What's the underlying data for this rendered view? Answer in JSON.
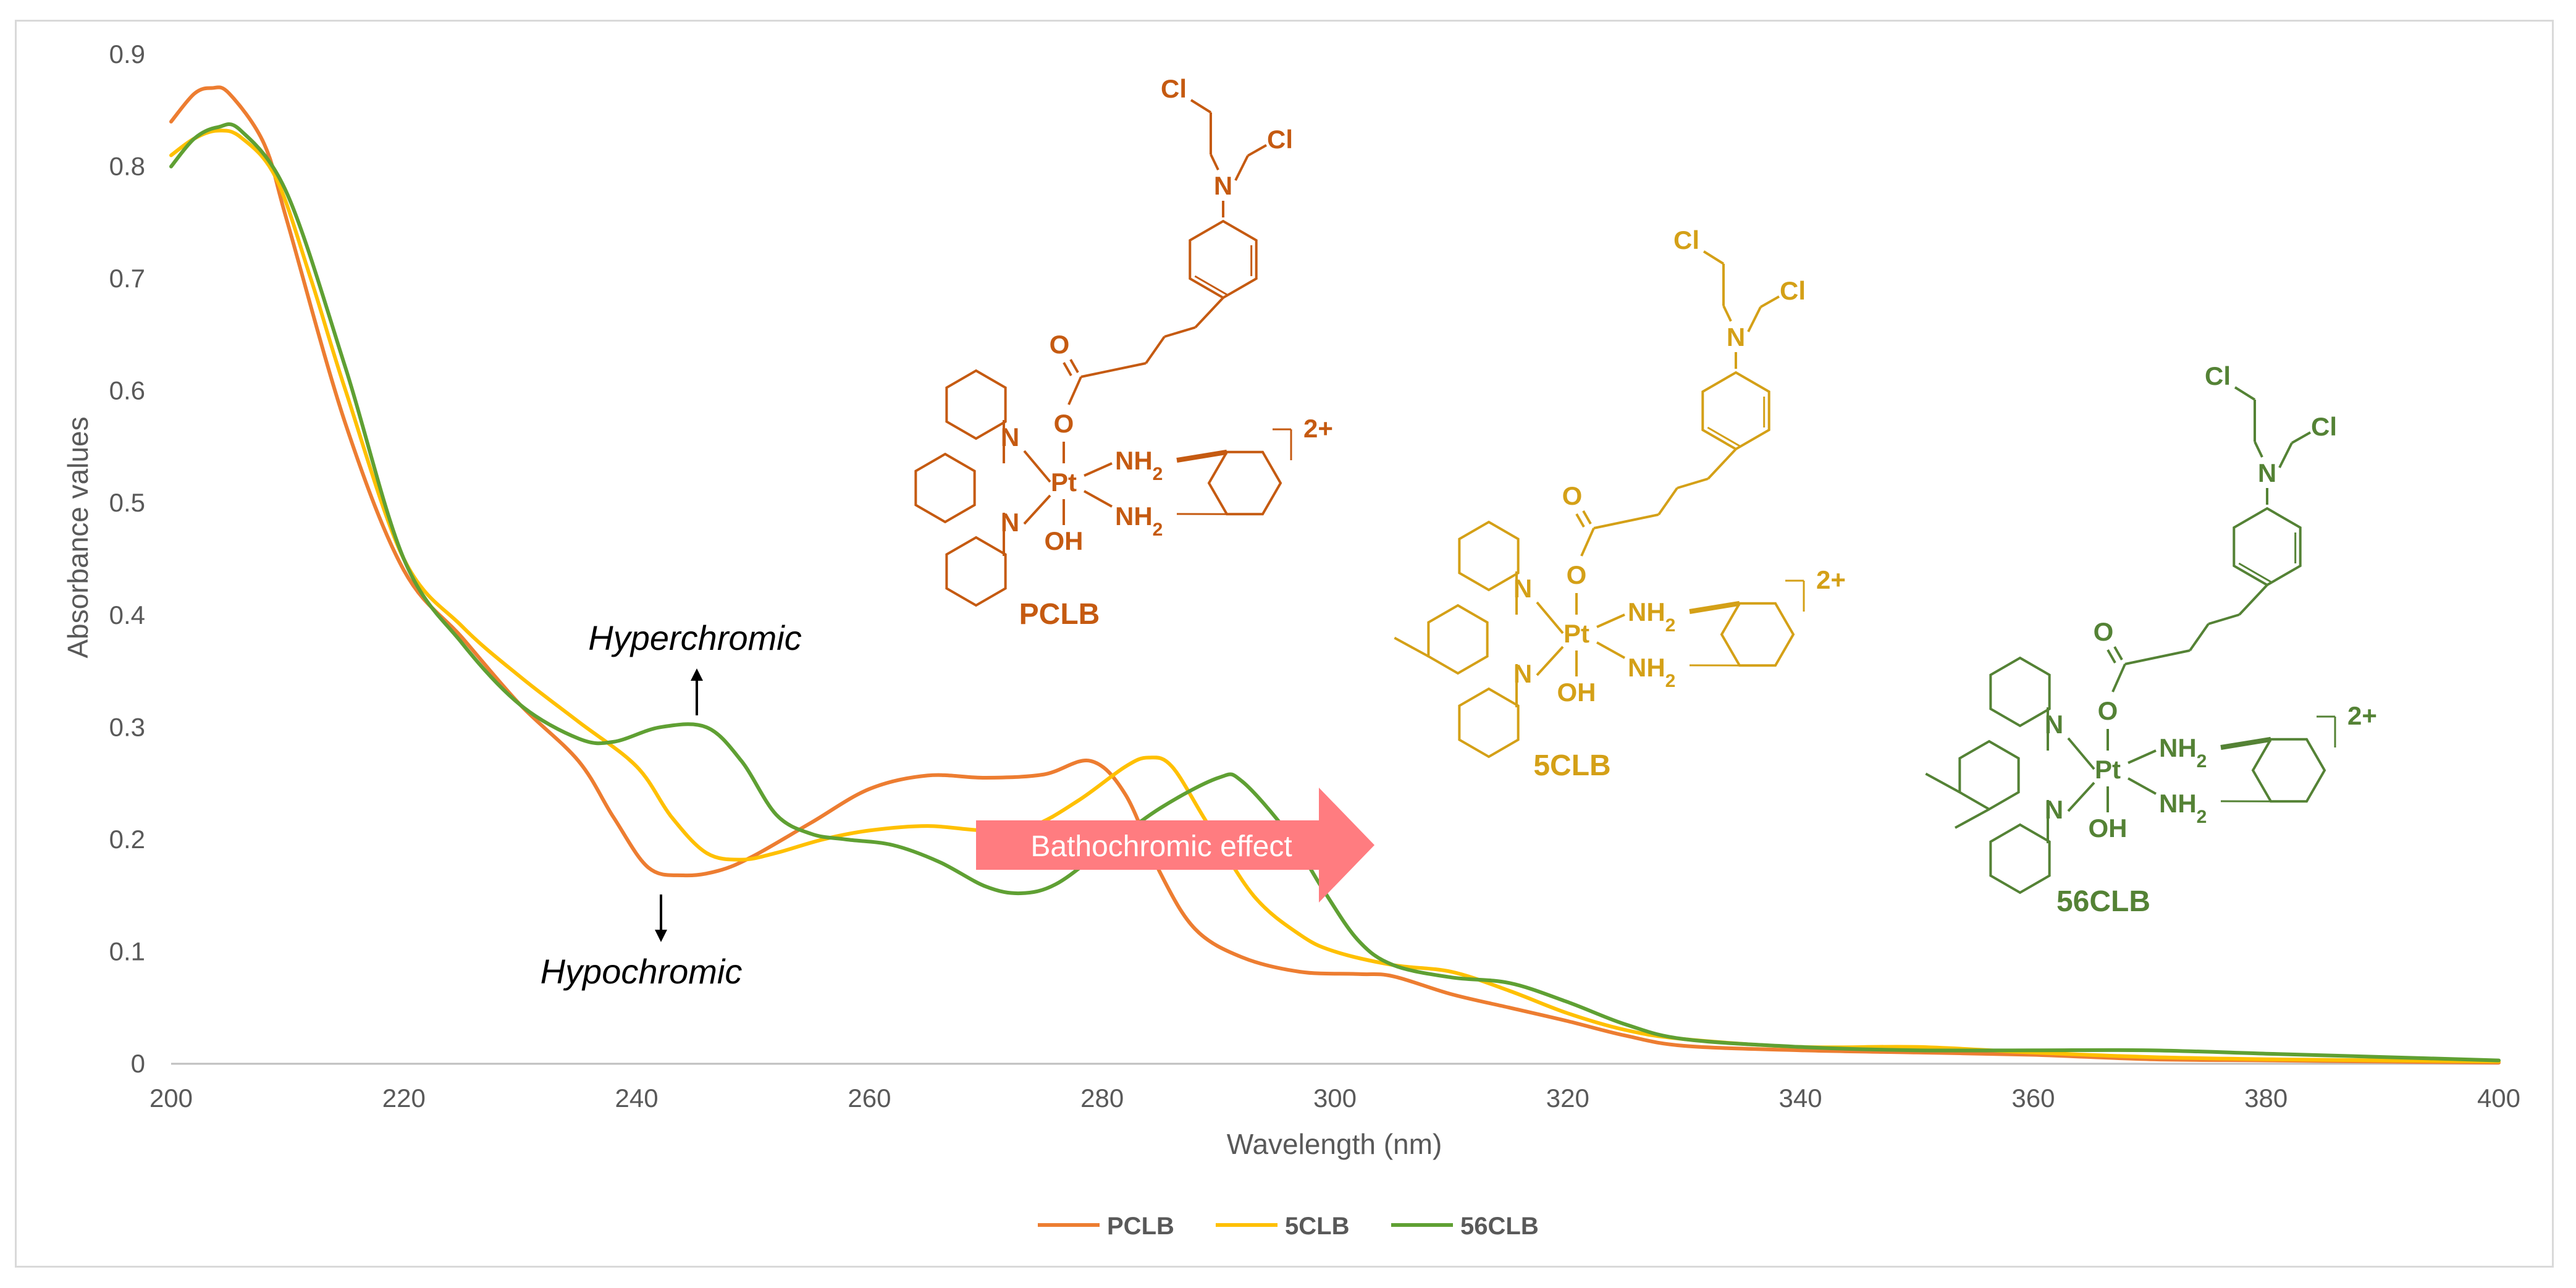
{
  "chart_data": {
    "type": "line",
    "xlabel": "Wavelength (nm)",
    "ylabel": "Absorbance values",
    "xlim": [
      200,
      400
    ],
    "ylim": [
      0,
      0.9
    ],
    "x_ticks": [
      200,
      220,
      240,
      260,
      280,
      300,
      320,
      340,
      360,
      380,
      400
    ],
    "y_ticks": [
      "0",
      "0.1",
      "0.2",
      "0.3",
      "0.4",
      "0.5",
      "0.6",
      "0.7",
      "0.8",
      "0.9"
    ],
    "grid": false,
    "legend_position": "bottom",
    "series": [
      {
        "name": "PCLB",
        "color": "#ed7d31",
        "points": [
          [
            200,
            0.84
          ],
          [
            202,
            0.865
          ],
          [
            203.5,
            0.87
          ],
          [
            205,
            0.865
          ],
          [
            208,
            0.82
          ],
          [
            210,
            0.75
          ],
          [
            215,
            0.57
          ],
          [
            220,
            0.44
          ],
          [
            225,
            0.38
          ],
          [
            230,
            0.32
          ],
          [
            235,
            0.27
          ],
          [
            238,
            0.22
          ],
          [
            241,
            0.175
          ],
          [
            244,
            0.168
          ],
          [
            247,
            0.172
          ],
          [
            250,
            0.185
          ],
          [
            255,
            0.215
          ],
          [
            260,
            0.245
          ],
          [
            265,
            0.257
          ],
          [
            270,
            0.255
          ],
          [
            275,
            0.258
          ],
          [
            279,
            0.27
          ],
          [
            282,
            0.24
          ],
          [
            285,
            0.17
          ],
          [
            288,
            0.12
          ],
          [
            292,
            0.095
          ],
          [
            297,
            0.082
          ],
          [
            302,
            0.08
          ],
          [
            305,
            0.078
          ],
          [
            310,
            0.062
          ],
          [
            315,
            0.05
          ],
          [
            320,
            0.038
          ],
          [
            325,
            0.025
          ],
          [
            330,
            0.016
          ],
          [
            340,
            0.012
          ],
          [
            350,
            0.01
          ],
          [
            360,
            0.008
          ],
          [
            370,
            0.004
          ],
          [
            380,
            0.003
          ],
          [
            390,
            0.002
          ],
          [
            400,
            0.001
          ]
        ]
      },
      {
        "name": "5CLB",
        "color": "#ffc000",
        "points": [
          [
            200,
            0.81
          ],
          [
            202,
            0.825
          ],
          [
            204,
            0.832
          ],
          [
            206,
            0.826
          ],
          [
            209,
            0.79
          ],
          [
            212,
            0.7
          ],
          [
            215,
            0.6
          ],
          [
            220,
            0.45
          ],
          [
            225,
            0.39
          ],
          [
            230,
            0.345
          ],
          [
            235,
            0.305
          ],
          [
            240,
            0.265
          ],
          [
            243,
            0.22
          ],
          [
            246,
            0.188
          ],
          [
            249,
            0.182
          ],
          [
            252,
            0.188
          ],
          [
            256,
            0.2
          ],
          [
            260,
            0.208
          ],
          [
            265,
            0.212
          ],
          [
            270,
            0.208
          ],
          [
            274,
            0.212
          ],
          [
            278,
            0.235
          ],
          [
            282,
            0.265
          ],
          [
            284,
            0.273
          ],
          [
            286,
            0.265
          ],
          [
            289,
            0.215
          ],
          [
            293,
            0.15
          ],
          [
            297,
            0.115
          ],
          [
            300,
            0.1
          ],
          [
            305,
            0.088
          ],
          [
            310,
            0.082
          ],
          [
            315,
            0.065
          ],
          [
            320,
            0.045
          ],
          [
            325,
            0.03
          ],
          [
            330,
            0.022
          ],
          [
            340,
            0.015
          ],
          [
            350,
            0.015
          ],
          [
            360,
            0.01
          ],
          [
            370,
            0.006
          ],
          [
            380,
            0.004
          ],
          [
            390,
            0.003
          ],
          [
            400,
            0.002
          ]
        ]
      },
      {
        "name": "56CLB",
        "color": "#5fa033",
        "points": [
          [
            200,
            0.8
          ],
          [
            202,
            0.825
          ],
          [
            204,
            0.835
          ],
          [
            206,
            0.832
          ],
          [
            210,
            0.775
          ],
          [
            215,
            0.62
          ],
          [
            220,
            0.45
          ],
          [
            225,
            0.375
          ],
          [
            230,
            0.32
          ],
          [
            235,
            0.29
          ],
          [
            238,
            0.287
          ],
          [
            242,
            0.3
          ],
          [
            246,
            0.3
          ],
          [
            249,
            0.27
          ],
          [
            252,
            0.222
          ],
          [
            255,
            0.205
          ],
          [
            258,
            0.2
          ],
          [
            262,
            0.195
          ],
          [
            266,
            0.18
          ],
          [
            270,
            0.158
          ],
          [
            273,
            0.152
          ],
          [
            276,
            0.16
          ],
          [
            280,
            0.19
          ],
          [
            285,
            0.228
          ],
          [
            290,
            0.255
          ],
          [
            292,
            0.252
          ],
          [
            296,
            0.205
          ],
          [
            299,
            0.155
          ],
          [
            302,
            0.11
          ],
          [
            305,
            0.088
          ],
          [
            310,
            0.077
          ],
          [
            315,
            0.072
          ],
          [
            320,
            0.055
          ],
          [
            325,
            0.035
          ],
          [
            330,
            0.022
          ],
          [
            340,
            0.015
          ],
          [
            350,
            0.012
          ],
          [
            360,
            0.012
          ],
          [
            370,
            0.012
          ],
          [
            380,
            0.009
          ],
          [
            390,
            0.006
          ],
          [
            400,
            0.003
          ]
        ]
      }
    ],
    "annotations": {
      "hyperchromic": "Hyperchromic",
      "hypochromic": "Hypochromic",
      "bathochromic": "Bathochromic effect"
    }
  },
  "molecules": {
    "pclb": {
      "name": "PCLB",
      "color": "#c55a11"
    },
    "clb5": {
      "name": "5CLB",
      "color": "#d4a017"
    },
    "clb56": {
      "name": "56CLB",
      "color": "#548235"
    },
    "labels": {
      "cl": "Cl",
      "n": "N",
      "o": "O",
      "pt": "Pt",
      "oh": "OH",
      "nh2": "NH",
      "sub2": "2",
      "charge": "2+"
    }
  },
  "badge_color": "#ff7c80"
}
